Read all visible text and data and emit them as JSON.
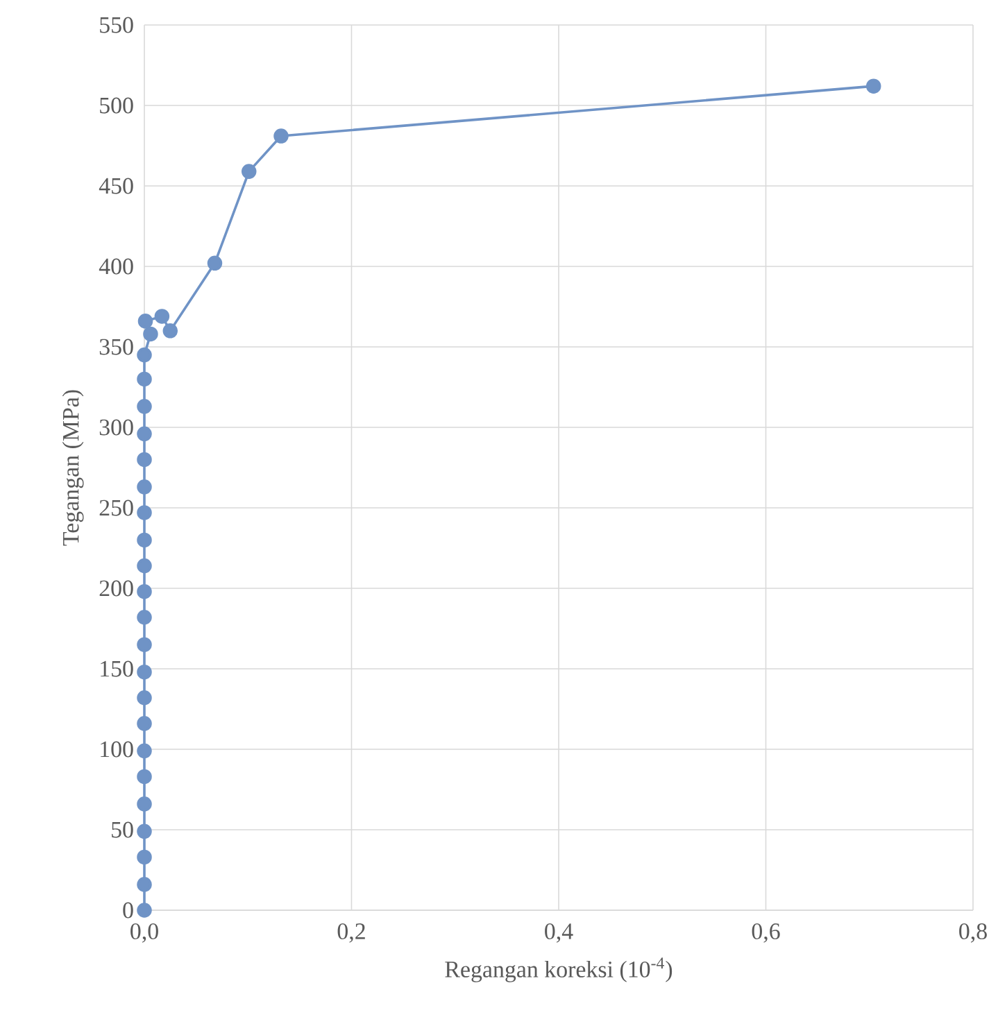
{
  "chart_data": {
    "type": "line",
    "xlabel": "Regangan koreksi (10$^{-4}$)",
    "ylabel": "Tegangan (MPa)",
    "series": [
      {
        "color": "#6f93c6",
        "x": [
          0,
          0,
          0,
          0,
          0,
          0,
          0,
          0,
          0,
          0,
          0,
          0,
          0,
          0,
          0,
          0,
          0,
          0,
          0,
          0,
          0,
          0,
          0.004,
          0.006,
          0.001,
          0.017,
          0.025,
          0.068,
          0.101,
          0.132,
          0.704
        ],
        "values": [
          0,
          16,
          33,
          49,
          66,
          83,
          99,
          116,
          132,
          148,
          165,
          182,
          198,
          214,
          230,
          247,
          263,
          280,
          296,
          313,
          330,
          345,
          null,
          358,
          366,
          369,
          360,
          402,
          459,
          481,
          512
        ]
      }
    ],
    "xlim": [
      0,
      0.8
    ],
    "ylim": [
      0,
      550
    ],
    "xticks": [
      {
        "value": 0,
        "label": "0,0"
      },
      {
        "value": 0.2,
        "label": "0,2"
      },
      {
        "value": 0.4,
        "label": "0,4"
      },
      {
        "value": 0.6,
        "label": "0,6"
      },
      {
        "value": 0.8,
        "label": "0,8"
      }
    ],
    "yticks": [
      0,
      50,
      100,
      150,
      200,
      250,
      300,
      350,
      400,
      450,
      500,
      550
    ],
    "grid": true,
    "legend": false,
    "marker": "circle",
    "line_style": "solid"
  }
}
